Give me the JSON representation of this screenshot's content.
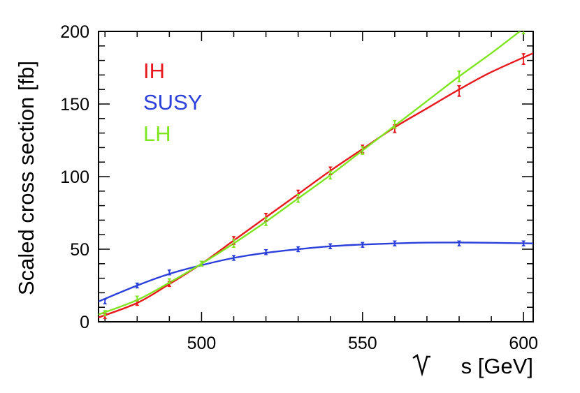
{
  "chart_data": {
    "type": "line",
    "xlabel": "s [GeV]",
    "ylabel": "Scaled cross section [fb]",
    "xlim": [
      468,
      603
    ],
    "ylim": [
      0,
      200
    ],
    "x_ticks": [
      500,
      550,
      600
    ],
    "y_ticks": [
      0,
      50,
      100,
      150,
      200
    ],
    "grid": false,
    "legend_position": "top-left",
    "series": [
      {
        "name": "IH",
        "color": "#e8191c",
        "points": [
          [
            470,
            4
          ],
          [
            480,
            13
          ],
          [
            490,
            26
          ],
          [
            500,
            40
          ],
          [
            510,
            56
          ],
          [
            520,
            72
          ],
          [
            530,
            88
          ],
          [
            540,
            104
          ],
          [
            550,
            119
          ],
          [
            560,
            133
          ],
          [
            580,
            159
          ],
          [
            600,
            181
          ]
        ],
        "errors": [
          2,
          2,
          2,
          2,
          3,
          3,
          3,
          3,
          3,
          3,
          4,
          4
        ],
        "fit": [
          [
            468,
            3
          ],
          [
            480,
            13
          ],
          [
            490,
            26
          ],
          [
            500,
            40
          ],
          [
            510,
            56
          ],
          [
            520,
            72
          ],
          [
            530,
            88
          ],
          [
            540,
            104
          ],
          [
            550,
            119
          ],
          [
            560,
            134
          ],
          [
            570,
            147
          ],
          [
            580,
            160
          ],
          [
            590,
            172
          ],
          [
            603,
            185
          ]
        ]
      },
      {
        "name": "SUSY",
        "color": "#2b3fdb",
        "points": [
          [
            470,
            14
          ],
          [
            480,
            25
          ],
          [
            490,
            34
          ],
          [
            500,
            40
          ],
          [
            510,
            44
          ],
          [
            520,
            48
          ],
          [
            530,
            50
          ],
          [
            540,
            52
          ],
          [
            550,
            53
          ],
          [
            560,
            54
          ],
          [
            580,
            54
          ],
          [
            600,
            54
          ]
        ],
        "errors": [
          2,
          2,
          2,
          2,
          2,
          2,
          2,
          2,
          2,
          2,
          2,
          2
        ],
        "fit": [
          [
            468,
            14
          ],
          [
            480,
            25
          ],
          [
            490,
            33
          ],
          [
            500,
            39
          ],
          [
            510,
            44
          ],
          [
            520,
            47.5
          ],
          [
            530,
            50
          ],
          [
            540,
            52
          ],
          [
            550,
            53.2
          ],
          [
            560,
            54
          ],
          [
            570,
            54.5
          ],
          [
            580,
            54.6
          ],
          [
            590,
            54.4
          ],
          [
            603,
            54
          ]
        ]
      },
      {
        "name": "LH",
        "color": "#7ee620",
        "points": [
          [
            470,
            6
          ],
          [
            480,
            16
          ],
          [
            490,
            28
          ],
          [
            500,
            40
          ],
          [
            510,
            54
          ],
          [
            520,
            69
          ],
          [
            530,
            85
          ],
          [
            540,
            101
          ],
          [
            550,
            118
          ],
          [
            560,
            136
          ],
          [
            580,
            169
          ],
          [
            600,
            202
          ]
        ],
        "errors": [
          2,
          2,
          2,
          2,
          3,
          3,
          3,
          3,
          3,
          3,
          4,
          4
        ],
        "fit": [
          [
            468,
            5
          ],
          [
            480,
            15
          ],
          [
            490,
            27
          ],
          [
            500,
            40
          ],
          [
            510,
            54
          ],
          [
            520,
            69
          ],
          [
            530,
            85
          ],
          [
            540,
            101
          ],
          [
            550,
            118
          ],
          [
            560,
            135
          ],
          [
            570,
            152
          ],
          [
            580,
            169
          ],
          [
            590,
            185
          ],
          [
            600,
            202
          ]
        ]
      }
    ]
  }
}
